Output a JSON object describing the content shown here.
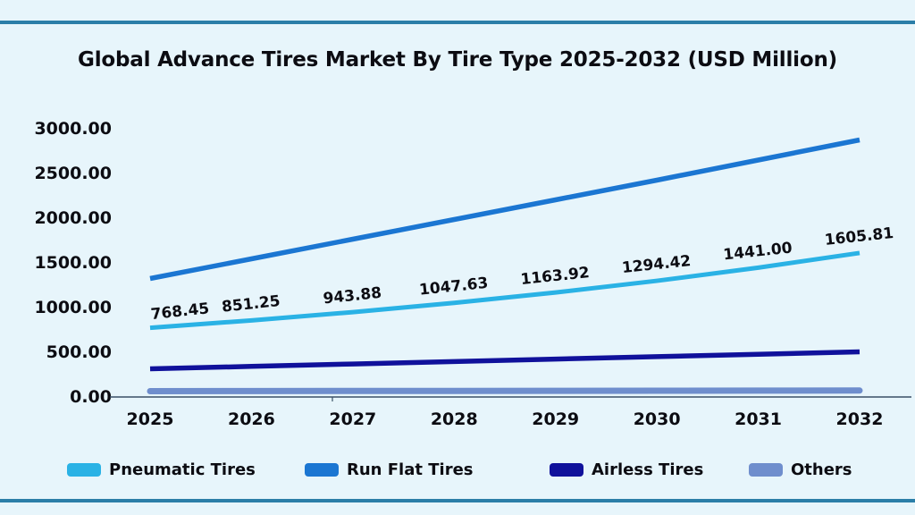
{
  "colors": {
    "background": "#e7f5fb",
    "frame_border": "#2b7ea8",
    "axis": "#3a4f66",
    "text": "#0c0c12"
  },
  "chart_data": {
    "type": "line",
    "title": "Global Advance Tires Market By Tire Type 2025-2032 (USD Million)",
    "xlabel": "",
    "ylabel": "",
    "categories": [
      "2025",
      "2026",
      "2027",
      "2028",
      "2029",
      "2030",
      "2031",
      "2032"
    ],
    "y_tick_labels": [
      "3000.00",
      "2500.00",
      "2000.00",
      "1500.00",
      "1000.00",
      "500.00",
      "0.00"
    ],
    "ylim": [
      0,
      3000
    ],
    "y_step": 500,
    "grid": false,
    "legend_position": "bottom",
    "series": [
      {
        "name": "Pneumatic Tires",
        "color": "#2ab2e5",
        "values": [
          768.45,
          851.25,
          943.88,
          1047.63,
          1163.92,
          1294.42,
          1441.0,
          1605.81
        ],
        "data_labels": [
          "768.45",
          "851.25",
          "943.88",
          "1047.63",
          "1163.92",
          "1294.42",
          "1441.00",
          "1605.81"
        ]
      },
      {
        "name": "Run Flat Tires",
        "color": "#1b76d2",
        "values": [
          1320,
          1540,
          1760,
          1980,
          2200,
          2420,
          2645,
          2870
        ]
      },
      {
        "name": "Airless Tires",
        "color": "#10119b",
        "values": [
          310,
          337,
          364,
          391,
          419,
          446,
          473,
          500
        ]
      },
      {
        "name": "Others",
        "color": "#6f8ecd",
        "values": [
          60,
          61,
          62,
          63,
          64,
          65,
          66,
          67
        ]
      }
    ]
  }
}
